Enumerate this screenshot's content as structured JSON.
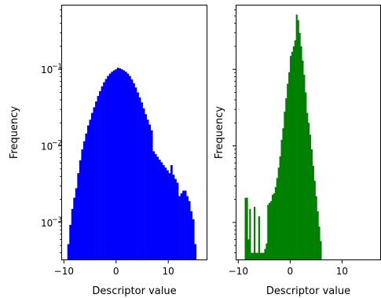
{
  "chart_data": [
    {
      "type": "bar",
      "subtype": "histogram",
      "xlabel": "Descriptor value",
      "ylabel": "Frequency",
      "yscale": "log",
      "xlim": [
        -10.5,
        17.5
      ],
      "ylim": [
        0.00032,
        0.7
      ],
      "xticks": [
        -10,
        0,
        10
      ],
      "xtick_labels": [
        "−10",
        "0",
        "10"
      ],
      "yticks": [
        0.001,
        0.01,
        0.1
      ],
      "ytick_labels": [
        "10",
        "10",
        "10"
      ],
      "ytick_exponents": [
        "−3",
        "−2",
        "−1"
      ],
      "color": "#0000ff",
      "bin_edges": [
        -9.34,
        -8.96,
        -8.58,
        -8.2,
        -7.82,
        -7.44,
        -7.06,
        -6.68,
        -6.3,
        -5.92,
        -5.54,
        -5.16,
        -4.78,
        -4.4,
        -4.02,
        -3.64,
        -3.26,
        -2.88,
        -2.5,
        -2.12,
        -1.74,
        -1.36,
        -0.98,
        -0.6,
        -0.22,
        0.16,
        0.54,
        0.92,
        1.3,
        1.68,
        2.06,
        2.44,
        2.82,
        3.2,
        3.58,
        3.96,
        4.34,
        4.72,
        5.1,
        5.48,
        5.86,
        6.24,
        6.62,
        7.0,
        7.38,
        7.76,
        8.14,
        8.52,
        8.9,
        9.28,
        9.66,
        10.04,
        10.42,
        10.8,
        11.18,
        11.56,
        11.94,
        12.32,
        12.7,
        13.08,
        13.46,
        13.84,
        14.22,
        14.6,
        14.98,
        15.36
      ],
      "counts": [
        0.00052,
        0.00093,
        0.0015,
        0.0021,
        0.0028,
        0.0044,
        0.0065,
        0.009,
        0.0115,
        0.0145,
        0.0185,
        0.022,
        0.027,
        0.032,
        0.038,
        0.045,
        0.052,
        0.06,
        0.068,
        0.075,
        0.082,
        0.088,
        0.093,
        0.097,
        0.1,
        0.105,
        0.103,
        0.1,
        0.097,
        0.093,
        0.088,
        0.082,
        0.074,
        0.066,
        0.058,
        0.05,
        0.043,
        0.037,
        0.031,
        0.026,
        0.022,
        0.019,
        0.016,
        0.0085,
        0.0078,
        0.0072,
        0.0066,
        0.0061,
        0.0056,
        0.0052,
        0.0048,
        0.0044,
        0.0056,
        0.0042,
        0.0037,
        0.0033,
        0.0022,
        0.0024,
        0.0026,
        0.0026,
        0.0022,
        0.0019,
        0.0014,
        0.0011,
        0.00052
      ]
    },
    {
      "type": "bar",
      "subtype": "histogram",
      "xlabel": "Descriptor value",
      "ylabel": "Frequency",
      "yscale": "log",
      "xlim": [
        -10.5,
        17.5
      ],
      "ylim": [
        0.00032,
        0.7
      ],
      "xticks": [
        -10,
        0,
        10
      ],
      "xtick_labels": [
        "−10",
        "0",
        "10"
      ],
      "color": "#008000",
      "bin_edges": [
        -8.76,
        -8.47,
        -8.18,
        -7.89,
        -7.6,
        -7.31,
        -7.02,
        -6.73,
        -6.44,
        -6.15,
        -5.86,
        -5.57,
        -5.28,
        -4.99,
        -4.7,
        -4.41,
        -4.12,
        -3.83,
        -3.54,
        -3.25,
        -2.96,
        -2.67,
        -2.38,
        -2.09,
        -1.8,
        -1.51,
        -1.22,
        -0.93,
        -0.64,
        -0.35,
        -0.06,
        0.23,
        0.52,
        0.81,
        1.1,
        1.39,
        1.68,
        1.97,
        2.26,
        2.55,
        2.84,
        3.13,
        3.42,
        3.71,
        4.0,
        4.29,
        4.58,
        4.87,
        5.16,
        5.45,
        5.74,
        6.03
      ],
      "counts": [
        0.0021,
        0.0021,
        0.0006,
        0.0015,
        0.0004,
        0.0004,
        0.0016,
        0.0004,
        0.0004,
        0.0012,
        0.0004,
        0.0004,
        0.0004,
        0.00045,
        0.00053,
        0.0017,
        0.0018,
        0.0019,
        0.0023,
        0.0024,
        0.0029,
        0.0038,
        0.0052,
        0.0073,
        0.012,
        0.017,
        0.028,
        0.042,
        0.065,
        0.092,
        0.15,
        0.17,
        0.2,
        0.24,
        0.52,
        0.44,
        0.3,
        0.2,
        0.13,
        0.085,
        0.05,
        0.027,
        0.02,
        0.014,
        0.009,
        0.0055,
        0.0035,
        0.0022,
        0.0014,
        0.00088,
        0.00057
      ]
    }
  ]
}
